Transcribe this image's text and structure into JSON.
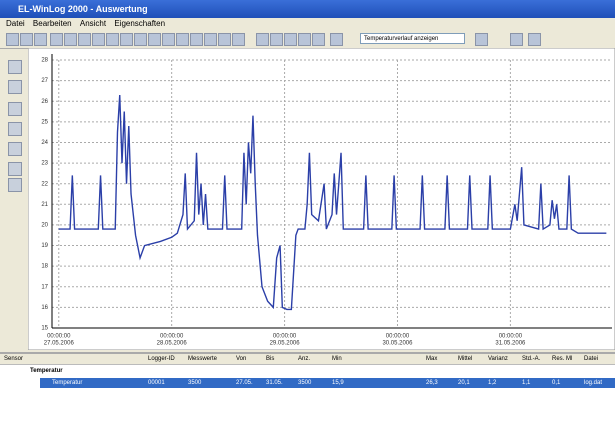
{
  "window": {
    "title": "EL-WinLog 2000 - Auswertung",
    "menu": [
      "Datei",
      "Bearbeiten",
      "Ansicht",
      "Eigenschaften"
    ],
    "combo": "Temperaturverlauf anzeigen"
  },
  "chart_data": {
    "type": "line",
    "x": [
      0,
      0.1,
      0.12,
      0.14,
      0.35,
      0.37,
      0.39,
      0.5,
      0.52,
      0.54,
      0.56,
      0.58,
      0.6,
      0.62,
      0.64,
      0.68,
      0.72,
      0.76,
      0.9,
      1.0,
      1.05,
      1.1,
      1.12,
      1.14,
      1.2,
      1.22,
      1.24,
      1.26,
      1.28,
      1.3,
      1.32,
      1.45,
      1.47,
      1.49,
      1.62,
      1.64,
      1.66,
      1.68,
      1.7,
      1.72,
      1.74,
      1.76,
      1.8,
      1.85,
      1.9,
      1.93,
      1.96,
      1.98,
      2.02,
      2.06,
      2.1,
      2.12,
      2.18,
      2.2,
      2.22,
      2.24,
      2.3,
      2.35,
      2.37,
      2.42,
      2.44,
      2.46,
      2.5,
      2.52,
      2.7,
      2.72,
      2.74,
      2.95,
      2.97,
      2.99,
      3.2,
      3.22,
      3.24,
      3.42,
      3.44,
      3.46,
      3.62,
      3.64,
      3.66,
      3.8,
      3.82,
      3.84,
      4.0,
      4.04,
      4.06,
      4.08,
      4.1,
      4.12,
      4.25,
      4.27,
      4.29,
      4.35,
      4.37,
      4.39,
      4.41,
      4.43,
      4.5,
      4.52,
      4.54,
      4.6,
      4.85
    ],
    "series": [
      {
        "name": "Temperatur",
        "color": "#2b3fa8",
        "values": [
          19.8,
          19.8,
          22.4,
          19.8,
          19.8,
          22.4,
          19.8,
          19.8,
          24.5,
          26.3,
          23,
          25.5,
          22,
          24.8,
          21.5,
          19.5,
          18.4,
          19.0,
          19.2,
          19.4,
          19.6,
          20.5,
          22.5,
          19.8,
          20.2,
          23.5,
          20.5,
          22,
          20,
          21.5,
          19.8,
          19.8,
          22.4,
          19.8,
          19.8,
          23.5,
          21,
          24.0,
          22.5,
          25.3,
          22,
          19.5,
          17,
          16.3,
          16.0,
          18.4,
          19.0,
          16.0,
          15.9,
          15.9,
          19.5,
          19.8,
          19.8,
          21,
          23.5,
          20.5,
          20.2,
          22,
          19.8,
          20.5,
          22.5,
          20.5,
          23.5,
          19.8,
          19.8,
          22.4,
          19.8,
          19.8,
          22.4,
          19.8,
          19.8,
          22.4,
          19.8,
          19.8,
          22.4,
          19.8,
          19.8,
          22.4,
          19.8,
          19.8,
          22.4,
          19.8,
          19.8,
          21,
          20.2,
          21.5,
          22.8,
          20,
          19.8,
          22.0,
          19.8,
          20,
          21.2,
          20.3,
          21.0,
          19.8,
          19.8,
          22.4,
          19.8,
          19.6,
          19.6
        ]
      }
    ],
    "xlim": [
      -0.06,
      4.9
    ],
    "xticks": [
      {
        "value": 0,
        "label": "00:00:00"
      },
      {
        "value": 1,
        "label": "00:00:00"
      },
      {
        "value": 2,
        "label": "00:00:00"
      },
      {
        "value": 3,
        "label": "00:00:00"
      },
      {
        "value": 4,
        "label": "00:00:00"
      }
    ],
    "xtick_dates": [
      "27.05.2006",
      "28.05.2006",
      "29.05.2006",
      "30.05.2006",
      "31.05.2006"
    ],
    "ylim": [
      15,
      28
    ],
    "yticks": [
      15,
      16,
      17,
      18,
      19,
      20,
      21,
      22,
      23,
      24,
      25,
      26,
      27,
      28
    ],
    "grid": true
  },
  "table": {
    "headers": [
      "Sensor",
      "Logger-ID",
      "Messwerte",
      "Von",
      "Bis",
      "Anz.",
      "Min",
      "Max",
      "Mittel",
      "Varianz",
      "Std.-A.",
      "Res. Ml",
      "Datei"
    ],
    "group": "Temperatur",
    "row": [
      "Temperatur",
      "00001",
      "3500",
      "27.05.",
      "31.05.",
      "3500",
      "15,9",
      "26,3",
      "20,1",
      "1,2",
      "1,1",
      "0,1",
      "log.dat"
    ]
  }
}
